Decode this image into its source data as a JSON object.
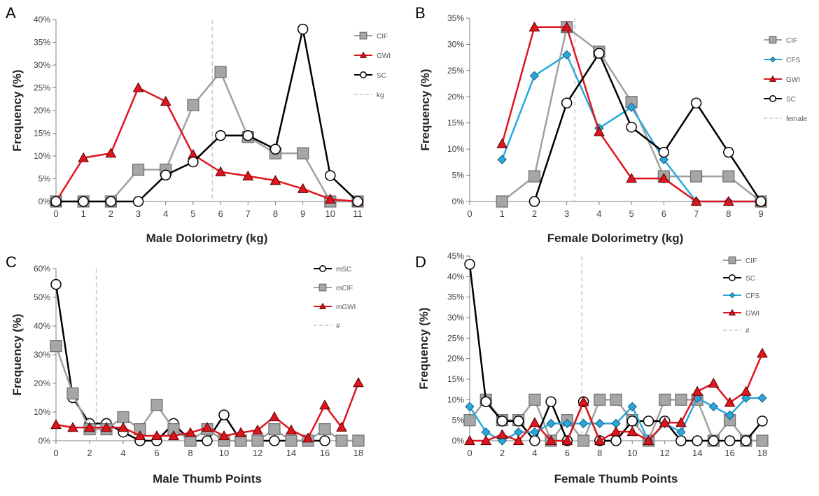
{
  "chart_data": [
    {
      "panel": "A",
      "type": "line",
      "xlabel": "Male Dolorimetry (kg)",
      "ylabel": "Frequency (%)",
      "xlim": [
        0,
        11
      ],
      "ylim": [
        0,
        40
      ],
      "ytick_step": 5,
      "xticks": [
        0,
        1,
        2,
        3,
        4,
        5,
        6,
        7,
        8,
        9,
        10,
        11
      ],
      "grid": false,
      "legend_position": "top-right",
      "series": [
        {
          "name": "CIF",
          "color": "#a0a0a0",
          "marker": "square",
          "x": [
            0,
            1,
            2,
            3,
            4,
            5,
            6,
            7,
            8,
            9,
            10,
            11
          ],
          "values": [
            0,
            0,
            0,
            7,
            7,
            21.2,
            28.5,
            14.2,
            10.6,
            10.6,
            0,
            0
          ]
        },
        {
          "name": "GWI",
          "color": "#e0141e",
          "marker": "triangle",
          "x": [
            0,
            1,
            2,
            3,
            4,
            5,
            6,
            7,
            8,
            9,
            10,
            11
          ],
          "values": [
            0,
            9.6,
            10.6,
            25,
            22,
            10.3,
            6.5,
            5.6,
            4.6,
            2.8,
            0.5,
            0
          ]
        },
        {
          "name": "SC",
          "color": "#000000",
          "marker": "circle",
          "x": [
            0,
            1,
            2,
            3,
            4,
            5,
            6,
            7,
            8,
            9,
            10,
            11
          ],
          "values": [
            0,
            0,
            0,
            0,
            5.8,
            8.7,
            14.5,
            14.5,
            11.5,
            37.9,
            5.7,
            0
          ]
        }
      ],
      "reference_line": {
        "name": "kg",
        "x": 5.7,
        "color": "#c8c8c8"
      }
    },
    {
      "panel": "B",
      "type": "line",
      "xlabel": "Female Dolorimetry (kg)",
      "ylabel": "Frequency (%)",
      "xlim": [
        0,
        9
      ],
      "ylim": [
        0,
        35
      ],
      "ytick_step": 5,
      "xticks": [
        0,
        1,
        2,
        3,
        4,
        5,
        6,
        7,
        8,
        9
      ],
      "grid": false,
      "legend_position": "top-right",
      "series": [
        {
          "name": "CIF",
          "color": "#a0a0a0",
          "marker": "square",
          "x": [
            1,
            2,
            3,
            4,
            5,
            6,
            7,
            8,
            9
          ],
          "values": [
            0,
            4.8,
            33.3,
            28.6,
            19,
            4.8,
            4.8,
            4.8,
            0
          ]
        },
        {
          "name": "CFS",
          "color": "#29a8dc",
          "marker": "diamond",
          "x": [
            1,
            2,
            3,
            4,
            5,
            6,
            7,
            8,
            9
          ],
          "values": [
            8,
            24,
            28,
            14,
            18,
            8,
            0,
            0,
            0
          ]
        },
        {
          "name": "GWI",
          "color": "#e0141e",
          "marker": "triangle",
          "x": [
            1,
            2,
            3,
            4,
            5,
            6,
            7,
            8,
            9
          ],
          "values": [
            11,
            33.3,
            33.3,
            13.3,
            4.4,
            4.4,
            0,
            0,
            0
          ]
        },
        {
          "name": "SC",
          "color": "#000000",
          "marker": "circle",
          "x": [
            2,
            3,
            4,
            5,
            6,
            7,
            8,
            9
          ],
          "values": [
            0,
            18.8,
            28.3,
            14.2,
            9.4,
            18.8,
            9.4,
            0
          ]
        }
      ],
      "reference_line": {
        "name": "female",
        "x": 3.25,
        "color": "#c8c8c8"
      }
    },
    {
      "panel": "C",
      "type": "line",
      "xlabel": "Male Thumb Points",
      "ylabel": "Frequency (%)",
      "xlim": [
        0,
        18
      ],
      "ylim": [
        0,
        60
      ],
      "ytick_step": 10,
      "xticks": [
        0,
        2,
        4,
        6,
        8,
        10,
        12,
        14,
        16,
        18
      ],
      "grid": false,
      "legend_position": "top-right",
      "series": [
        {
          "name": "mSC",
          "color": "#000000",
          "marker": "circle",
          "x": [
            0,
            1,
            2,
            3,
            4,
            5,
            6,
            7,
            8,
            9,
            10,
            11,
            12,
            13,
            14,
            15,
            16
          ],
          "values": [
            54.5,
            15,
            6,
            6,
            3,
            0,
            0,
            6,
            0,
            0,
            9,
            0,
            0,
            0,
            0,
            0,
            0
          ]
        },
        {
          "name": "mCIF",
          "color": "#a0a0a0",
          "marker": "square",
          "x": [
            0,
            1,
            2,
            3,
            4,
            5,
            6,
            7,
            8,
            9,
            10,
            11,
            12,
            13,
            14,
            15,
            16,
            17,
            18
          ],
          "values": [
            33,
            16.5,
            4,
            4,
            8.2,
            4,
            12.5,
            4,
            0,
            4,
            0,
            0,
            0,
            4,
            0,
            0,
            4,
            0,
            0
          ]
        },
        {
          "name": "mGWI",
          "color": "#e0141e",
          "marker": "triangle",
          "x": [
            0,
            1,
            2,
            3,
            4,
            5,
            6,
            7,
            8,
            9,
            10,
            11,
            12,
            13,
            14,
            15,
            16,
            17,
            18
          ],
          "values": [
            5.6,
            4.6,
            4.6,
            4.6,
            4.6,
            1.7,
            1.7,
            1.7,
            2.8,
            4.6,
            1.7,
            2.8,
            3.7,
            8.3,
            3.7,
            0.9,
            12.4,
            4.7,
            20.2
          ]
        }
      ],
      "reference_line": {
        "name": "#",
        "x": 2.4,
        "color": "#c8c8c8"
      }
    },
    {
      "panel": "D",
      "type": "line",
      "xlabel": "Female Thumb Points",
      "ylabel": "Frequency (%)",
      "xlim": [
        0,
        18
      ],
      "ylim": [
        0,
        45
      ],
      "ytick_step": 5,
      "xticks": [
        0,
        2,
        4,
        6,
        8,
        10,
        12,
        14,
        16,
        18
      ],
      "grid": false,
      "legend_position": "top-right",
      "series": [
        {
          "name": "CIF",
          "color": "#a0a0a0",
          "marker": "square",
          "x": [
            0,
            1,
            2,
            3,
            4,
            5,
            6,
            7,
            8,
            9,
            10,
            11,
            12,
            13,
            14,
            15,
            16,
            17,
            18
          ],
          "values": [
            5,
            10,
            5,
            5,
            10,
            0,
            5,
            0,
            10,
            10,
            5,
            0,
            10,
            10,
            10,
            0,
            5,
            0,
            0
          ]
        },
        {
          "name": "SC",
          "color": "#000000",
          "marker": "circle",
          "x": [
            0,
            1,
            2,
            3,
            4,
            5,
            6,
            7,
            8,
            9,
            10,
            11,
            12,
            13,
            14,
            15,
            16,
            17,
            18
          ],
          "values": [
            43,
            9.5,
            4.8,
            4.8,
            0,
            9.5,
            0,
            9.5,
            0,
            0,
            4.8,
            4.8,
            4.8,
            0,
            0,
            0,
            0,
            0,
            4.8
          ]
        },
        {
          "name": "CFS",
          "color": "#29a8dc",
          "marker": "diamond",
          "x": [
            0,
            1,
            2,
            3,
            4,
            5,
            6,
            7,
            8,
            9,
            10,
            11,
            12,
            13,
            14,
            15,
            16,
            17,
            18
          ],
          "values": [
            8.3,
            2.1,
            0,
            2.1,
            2.1,
            4.2,
            4.2,
            4.2,
            4.2,
            4.2,
            8.3,
            0,
            4.2,
            2.1,
            10.4,
            8.3,
            6.2,
            10.4,
            10.4
          ]
        },
        {
          "name": "GWI",
          "color": "#e0141e",
          "marker": "triangle",
          "x": [
            0,
            1,
            2,
            3,
            4,
            5,
            6,
            7,
            8,
            9,
            10,
            11,
            12,
            13,
            14,
            15,
            16,
            17,
            18
          ],
          "values": [
            0,
            0,
            1.5,
            0,
            4.4,
            0,
            0,
            9.5,
            0,
            2.2,
            2.2,
            0,
            4.4,
            4.4,
            12,
            14,
            9.3,
            12,
            21.3
          ]
        }
      ],
      "reference_line": {
        "name": "#",
        "x": 6.9,
        "color": "#c8c8c8"
      }
    }
  ]
}
